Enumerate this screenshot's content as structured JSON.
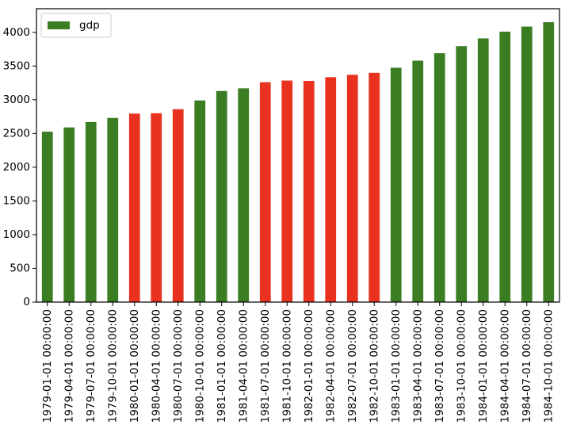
{
  "chart_data": {
    "type": "bar",
    "categories": [
      "1979-01-01 00:00:00",
      "1979-04-01 00:00:00",
      "1979-07-01 00:00:00",
      "1979-10-01 00:00:00",
      "1980-01-01 00:00:00",
      "1980-04-01 00:00:00",
      "1980-07-01 00:00:00",
      "1980-10-01 00:00:00",
      "1981-01-01 00:00:00",
      "1981-04-01 00:00:00",
      "1981-07-01 00:00:00",
      "1981-10-01 00:00:00",
      "1982-01-01 00:00:00",
      "1982-04-01 00:00:00",
      "1982-07-01 00:00:00",
      "1982-10-01 00:00:00",
      "1983-01-01 00:00:00",
      "1983-04-01 00:00:00",
      "1983-07-01 00:00:00",
      "1983-10-01 00:00:00",
      "1984-01-01 00:00:00",
      "1984-04-01 00:00:00",
      "1984-07-01 00:00:00",
      "1984-10-01 00:00:00"
    ],
    "series": [
      {
        "name": "gdp",
        "values": [
          2527,
          2590,
          2670,
          2730,
          2795,
          2800,
          2860,
          2990,
          3130,
          3170,
          3260,
          3285,
          3280,
          3335,
          3370,
          3400,
          3475,
          3580,
          3690,
          3795,
          3910,
          4010,
          4085,
          4150
        ]
      }
    ],
    "bar_colors": [
      "#3a7d22",
      "#3a7d22",
      "#3a7d22",
      "#3a7d22",
      "#e8321f",
      "#e8321f",
      "#e8321f",
      "#3a7d22",
      "#3a7d22",
      "#3a7d22",
      "#e8321f",
      "#e8321f",
      "#e8321f",
      "#e8321f",
      "#e8321f",
      "#e8321f",
      "#3a7d22",
      "#3a7d22",
      "#3a7d22",
      "#3a7d22",
      "#3a7d22",
      "#3a7d22",
      "#3a7d22",
      "#3a7d22"
    ],
    "legend": {
      "label": "gdp",
      "color": "#3a7d22",
      "placement": "top-left"
    },
    "yticks": [
      0,
      500,
      1000,
      1500,
      2000,
      2500,
      3000,
      3500,
      4000
    ],
    "ylim": [
      0,
      4350
    ],
    "grid": false,
    "title": "",
    "ylabel": ""
  }
}
